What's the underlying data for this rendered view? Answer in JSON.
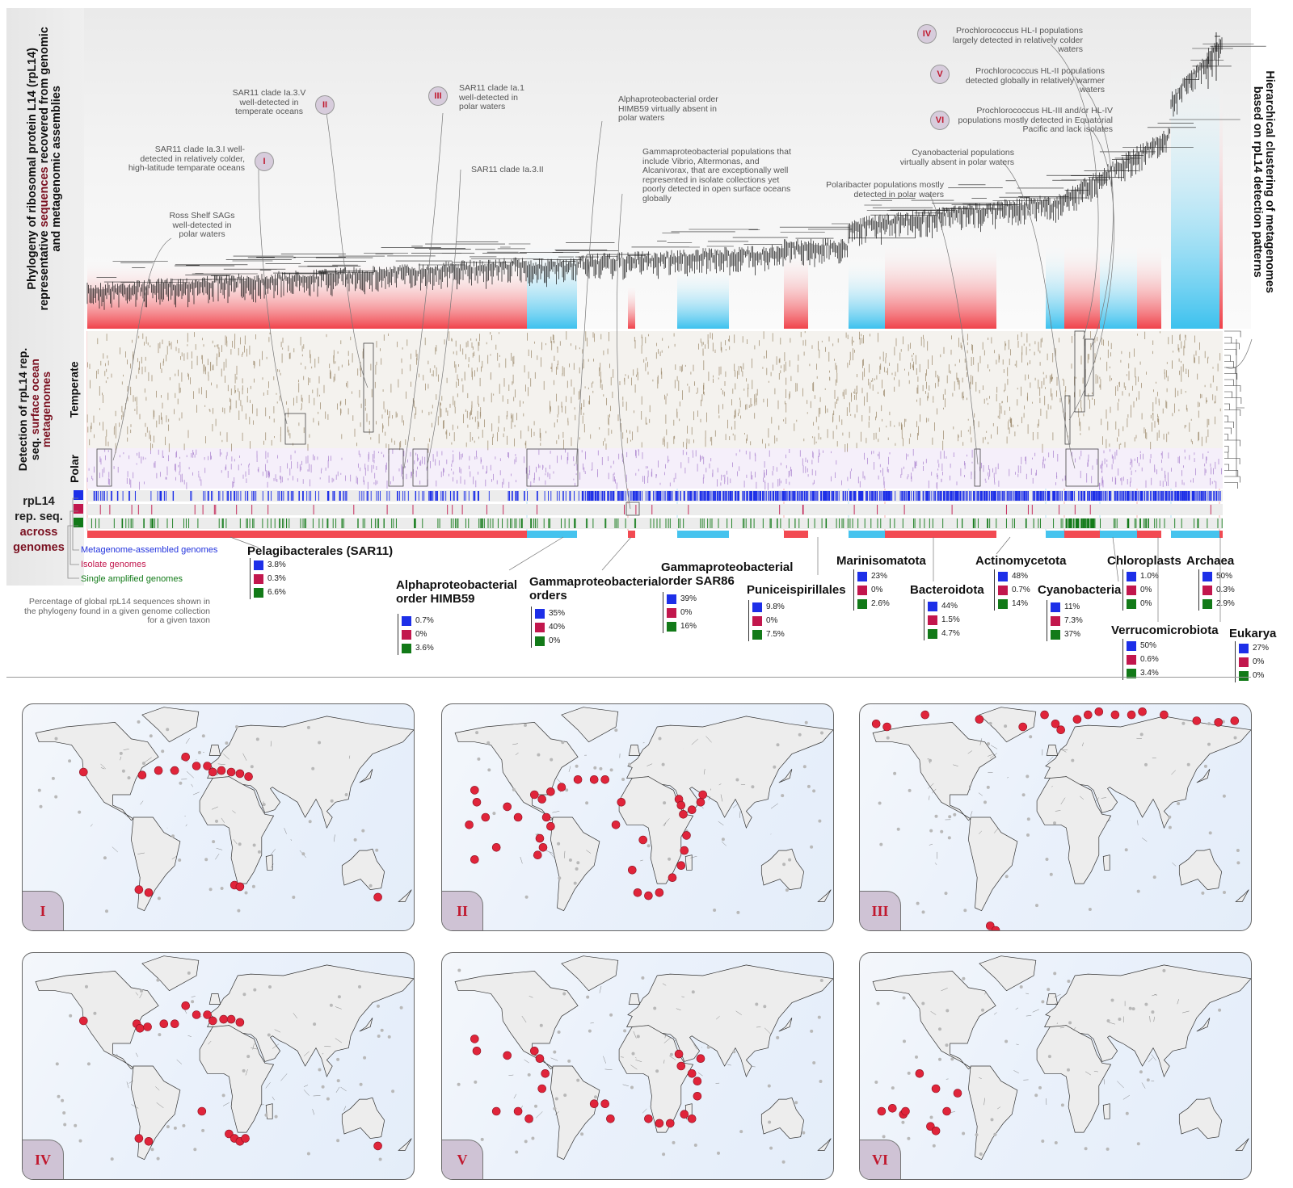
{
  "left_labels": {
    "phylogeny": [
      "Phylogeny of ribosomal protein L14 (rpL14)",
      "representative ",
      "sequences",
      " recovered from genomic",
      "and metagenomic assemblies"
    ],
    "detection": [
      "Detection of rpL14 rep.",
      "seq. ",
      "surface ocean",
      "metagenomes"
    ],
    "temperate": "Temperate",
    "polar": "Polar",
    "rep_seq": [
      "rpL14",
      "rep. seq.",
      "across",
      "genomes"
    ]
  },
  "right_label": [
    "Hierarchical clustering of metagenomes",
    "based on rpL14 detection patterns"
  ],
  "annotations": [
    {
      "id": "I",
      "text": "SAR11 clade Ia.3.I well-detected in relatively colder, high-latitude temparate oceans"
    },
    {
      "id": "II",
      "text": "SAR11 clade Ia.3.V well-detected in temperate oceans"
    },
    {
      "id": "III",
      "text": "SAR11 clade Ia.1 well-detected in polar waters"
    },
    {
      "id": "",
      "text": "SAR11 clade Ia.3.II"
    },
    {
      "id": "",
      "text": "Ross Shelf SAGs well-detected in polar waters"
    },
    {
      "id": "",
      "text": "Alphaproteobacterial order HIMB59 virtually absent in polar waters"
    },
    {
      "id": "",
      "text": "Gammaproteobacterial populations that include Vibrio, Altermonas, and Alcanivorax, that are exceptionally well represented in isolate collections yet poorly detected in open surface oceans globally"
    },
    {
      "id": "",
      "text": "Polaribacter populations mostly detected in polar waters"
    },
    {
      "id": "",
      "text": "Cyanobacterial populations virtually absent in polar waters"
    },
    {
      "id": "IV",
      "text": "Prochlorococcus HL-I populations largely detected in relatively colder waters"
    },
    {
      "id": "V",
      "text": "Prochlorococcus HL-II populations detected globally in relatively warmer waters"
    },
    {
      "id": "VI",
      "text": "Prochlorococcus HL-III and/or HL-IV populations mostly detected in Equatorial Pacific and lack isolates"
    }
  ],
  "legend": {
    "mag": "Metagenome-assembled genomes",
    "isolate": "Isolate genomes",
    "sag": "Single amplified genomes",
    "note": "Percentage of global rpL14 sequences shown in the phylogeny found in a given genome collection for a given taxon"
  },
  "taxa": [
    {
      "name": "Pelagibacterales (SAR11)",
      "mag": "3.8%",
      "iso": "0.3%",
      "sag": "6.6%"
    },
    {
      "name": "Alphaproteobacterial order HIMB59",
      "mag": "0.7%",
      "iso": "0%",
      "sag": "3.6%"
    },
    {
      "name": "Gammaproteobacterial orders",
      "mag": "35%",
      "iso": "40%",
      "sag": "0%"
    },
    {
      "name": "Gammaproteobacterial order SAR86",
      "mag": "39%",
      "iso": "0%",
      "sag": "16%"
    },
    {
      "name": "Puniceispirillales",
      "mag": "9.8%",
      "iso": "0%",
      "sag": "7.5%"
    },
    {
      "name": "Marinisomatota",
      "mag": "23%",
      "iso": "0%",
      "sag": "2.6%"
    },
    {
      "name": "Bacteroidota",
      "mag": "44%",
      "iso": "1.5%",
      "sag": "4.7%"
    },
    {
      "name": "Actinomycetota",
      "mag": "48%",
      "iso": "0.7%",
      "sag": "14%"
    },
    {
      "name": "Cyanobacteria",
      "mag": "11%",
      "iso": "7.3%",
      "sag": "37%"
    },
    {
      "name": "Chloroplasts",
      "mag": "1.0%",
      "iso": "0%",
      "sag": "0%"
    },
    {
      "name": "Verrucomicrobiota",
      "mag": "50%",
      "iso": "0.6%",
      "sag": "3.4%"
    },
    {
      "name": "Archaea",
      "mag": "50%",
      "iso": "0.3%",
      "sag": "2.9%"
    },
    {
      "name": "Eukarya",
      "mag": "27%",
      "iso": "0%",
      "sag": "0%"
    }
  ],
  "maps": [
    {
      "label": "I",
      "sites": [
        [
          -124,
          40
        ],
        [
          -70,
          38
        ],
        [
          -55,
          41
        ],
        [
          -40,
          41
        ],
        [
          -30,
          50
        ],
        [
          -20,
          44
        ],
        [
          -10,
          44
        ],
        [
          -5,
          40
        ],
        [
          3,
          41
        ],
        [
          12,
          40
        ],
        [
          20,
          39
        ],
        [
          28,
          37
        ],
        [
          -73,
          -38
        ],
        [
          -64,
          -40
        ],
        [
          15,
          -35
        ],
        [
          20,
          -36
        ],
        [
          147,
          -43
        ]
      ]
    },
    {
      "label": "II",
      "sites": [
        [
          -150,
          28
        ],
        [
          -148,
          20
        ],
        [
          -140,
          10
        ],
        [
          -155,
          5
        ],
        [
          -150,
          -18
        ],
        [
          -130,
          -10
        ],
        [
          -120,
          17
        ],
        [
          -110,
          10
        ],
        [
          -95,
          25
        ],
        [
          -88,
          22
        ],
        [
          -84,
          10
        ],
        [
          -80,
          4
        ],
        [
          -90,
          -4
        ],
        [
          -87,
          -10
        ],
        [
          -92,
          -15
        ],
        [
          -80,
          27
        ],
        [
          -70,
          30
        ],
        [
          -55,
          35
        ],
        [
          -40,
          35
        ],
        [
          -30,
          35
        ],
        [
          -15,
          20
        ],
        [
          -20,
          5
        ],
        [
          5,
          -5
        ],
        [
          -5,
          -25
        ],
        [
          0,
          -40
        ],
        [
          10,
          -42
        ],
        [
          20,
          -40
        ],
        [
          32,
          -30
        ],
        [
          40,
          -22
        ],
        [
          43,
          -12
        ],
        [
          38,
          22
        ],
        [
          40,
          18
        ],
        [
          42,
          12
        ],
        [
          50,
          15
        ],
        [
          58,
          20
        ],
        [
          60,
          25
        ],
        [
          45,
          -2
        ]
      ]
    },
    {
      "label": "III",
      "sites": [
        [
          -165,
          72
        ],
        [
          -155,
          70
        ],
        [
          -120,
          78
        ],
        [
          -70,
          75
        ],
        [
          -30,
          70
        ],
        [
          -10,
          78
        ],
        [
          0,
          72
        ],
        [
          5,
          68
        ],
        [
          20,
          75
        ],
        [
          30,
          78
        ],
        [
          40,
          80
        ],
        [
          55,
          78
        ],
        [
          70,
          78
        ],
        [
          80,
          80
        ],
        [
          100,
          78
        ],
        [
          130,
          74
        ],
        [
          150,
          73
        ],
        [
          165,
          74
        ],
        [
          -60,
          -62
        ],
        [
          -55,
          -65
        ],
        [
          -60,
          -70
        ]
      ]
    },
    {
      "label": "IV",
      "sites": [
        [
          -124,
          40
        ],
        [
          -75,
          38
        ],
        [
          -72,
          35
        ],
        [
          -65,
          36
        ],
        [
          -50,
          38
        ],
        [
          -40,
          38
        ],
        [
          -30,
          50
        ],
        [
          -20,
          44
        ],
        [
          -10,
          44
        ],
        [
          -5,
          40
        ],
        [
          5,
          41
        ],
        [
          12,
          41
        ],
        [
          20,
          39
        ],
        [
          -73,
          -38
        ],
        [
          -64,
          -40
        ],
        [
          -15,
          -20
        ],
        [
          10,
          -35
        ],
        [
          15,
          -38
        ],
        [
          20,
          -40
        ],
        [
          25,
          -38
        ],
        [
          147,
          -43
        ]
      ]
    },
    {
      "label": "V",
      "sites": [
        [
          -150,
          28
        ],
        [
          -148,
          20
        ],
        [
          -120,
          17
        ],
        [
          -95,
          20
        ],
        [
          -90,
          15
        ],
        [
          -85,
          5
        ],
        [
          -88,
          -5
        ],
        [
          -130,
          -20
        ],
        [
          -110,
          -20
        ],
        [
          -100,
          -25
        ],
        [
          -40,
          -15
        ],
        [
          -30,
          -15
        ],
        [
          -25,
          -25
        ],
        [
          10,
          -25
        ],
        [
          20,
          -28
        ],
        [
          30,
          -28
        ],
        [
          38,
          18
        ],
        [
          40,
          10
        ],
        [
          50,
          5
        ],
        [
          55,
          0
        ],
        [
          58,
          15
        ],
        [
          55,
          -10
        ],
        [
          50,
          -25
        ],
        [
          43,
          -22
        ]
      ]
    },
    {
      "label": "VI",
      "sites": [
        [
          -160,
          -20
        ],
        [
          -150,
          -18
        ],
        [
          -140,
          -22
        ],
        [
          -138,
          -20
        ],
        [
          -125,
          5
        ],
        [
          -110,
          -5
        ],
        [
          -115,
          -30
        ],
        [
          -110,
          -33
        ],
        [
          -100,
          -20
        ],
        [
          -90,
          -8
        ]
      ]
    }
  ]
}
